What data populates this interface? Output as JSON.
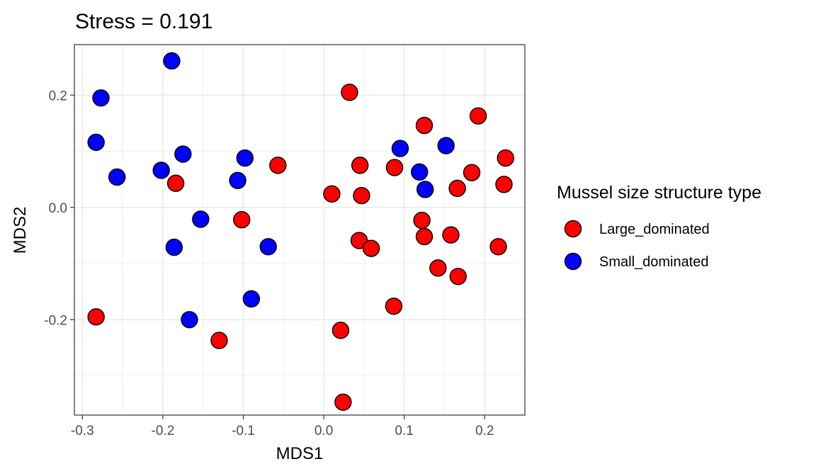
{
  "chart_data": {
    "type": "scatter",
    "title": "Stress =  0.191",
    "xlabel": "MDS1",
    "ylabel": "MDS2",
    "xlim": [
      -0.31,
      0.25
    ],
    "ylim": [
      -0.37,
      0.29
    ],
    "x_ticks": [
      -0.3,
      -0.2,
      -0.1,
      0.0,
      0.1,
      0.2
    ],
    "x_tick_labels": [
      "-0.3",
      "-0.2",
      "-0.1",
      "0.0",
      "0.1",
      "0.2"
    ],
    "y_ticks": [
      -0.2,
      0.0,
      0.2
    ],
    "y_tick_labels": [
      "-0.2",
      "0.0",
      "0.2"
    ],
    "grid": true,
    "legend": {
      "title": "Mussel size structure type",
      "position": "right"
    },
    "series": [
      {
        "name": "Large_dominated",
        "color": "#ff0000",
        "points": [
          {
            "x": -0.283,
            "y": -0.195
          },
          {
            "x": -0.184,
            "y": 0.043
          },
          {
            "x": -0.13,
            "y": -0.237
          },
          {
            "x": -0.102,
            "y": -0.022
          },
          {
            "x": -0.057,
            "y": 0.075
          },
          {
            "x": 0.01,
            "y": 0.024
          },
          {
            "x": 0.021,
            "y": -0.219
          },
          {
            "x": 0.024,
            "y": -0.347
          },
          {
            "x": 0.032,
            "y": 0.205
          },
          {
            "x": 0.044,
            "y": -0.059
          },
          {
            "x": 0.045,
            "y": 0.075
          },
          {
            "x": 0.047,
            "y": 0.021
          },
          {
            "x": 0.059,
            "y": -0.073
          },
          {
            "x": 0.087,
            "y": -0.176
          },
          {
            "x": 0.088,
            "y": 0.071
          },
          {
            "x": 0.122,
            "y": -0.023
          },
          {
            "x": 0.125,
            "y": -0.052
          },
          {
            "x": 0.125,
            "y": 0.146
          },
          {
            "x": 0.142,
            "y": -0.108
          },
          {
            "x": 0.158,
            "y": -0.049
          },
          {
            "x": 0.166,
            "y": 0.034
          },
          {
            "x": 0.167,
            "y": -0.123
          },
          {
            "x": 0.184,
            "y": 0.062
          },
          {
            "x": 0.192,
            "y": 0.163
          },
          {
            "x": 0.217,
            "y": -0.07
          },
          {
            "x": 0.224,
            "y": 0.041
          },
          {
            "x": 0.226,
            "y": 0.088
          }
        ]
      },
      {
        "name": "Small_dominated",
        "color": "#0000ff",
        "points": [
          {
            "x": -0.283,
            "y": 0.116
          },
          {
            "x": -0.277,
            "y": 0.195
          },
          {
            "x": -0.257,
            "y": 0.054
          },
          {
            "x": -0.202,
            "y": 0.066
          },
          {
            "x": -0.189,
            "y": 0.261
          },
          {
            "x": -0.186,
            "y": -0.071
          },
          {
            "x": -0.175,
            "y": 0.095
          },
          {
            "x": -0.167,
            "y": -0.2
          },
          {
            "x": -0.153,
            "y": -0.021
          },
          {
            "x": -0.107,
            "y": 0.048
          },
          {
            "x": -0.098,
            "y": 0.088
          },
          {
            "x": -0.09,
            "y": -0.163
          },
          {
            "x": -0.069,
            "y": -0.07
          },
          {
            "x": 0.095,
            "y": 0.105
          },
          {
            "x": 0.119,
            "y": 0.063
          },
          {
            "x": 0.126,
            "y": 0.032
          },
          {
            "x": 0.152,
            "y": 0.11
          }
        ]
      }
    ]
  }
}
